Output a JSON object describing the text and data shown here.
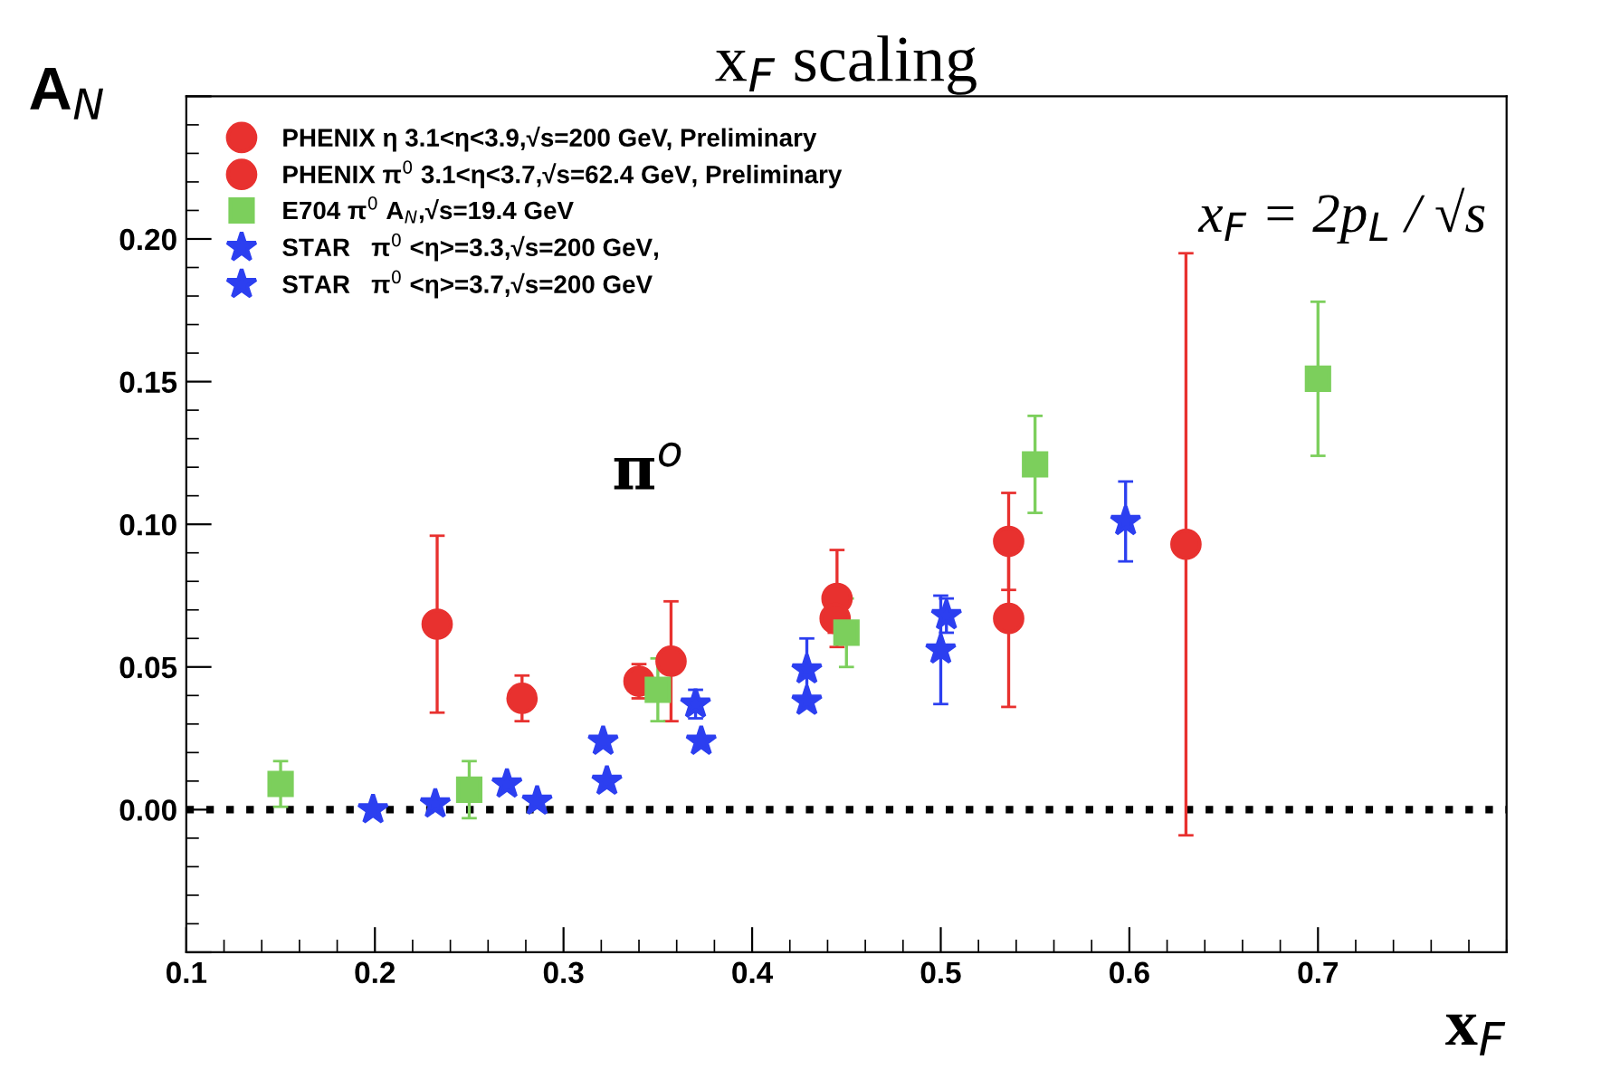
{
  "chart_data": {
    "type": "scatter",
    "title": "x$_{F}$ scaling",
    "xlabel": "x$_{F}$",
    "ylabel": "A$_{N}$",
    "xlim": [
      0.1,
      0.8
    ],
    "ylim": [
      -0.05,
      0.25
    ],
    "xticks": [
      0.1,
      0.2,
      0.3,
      0.4,
      0.5,
      0.6,
      0.7
    ],
    "yticks": [
      {
        "value": -0.05,
        "label": null
      },
      {
        "value": 0,
        "label": "0.00"
      },
      {
        "value": 0.05,
        "label": "0.05"
      },
      {
        "value": 0.1,
        "label": "0.10"
      },
      {
        "value": 0.15,
        "label": "0.15"
      },
      {
        "value": 0.2,
        "label": "0.20"
      },
      {
        "value": 0.25,
        "label": null
      }
    ],
    "grid": false,
    "legend": "top left",
    "ref_lines": [
      {
        "axis": "y",
        "value": 0,
        "color": "#000000",
        "line_style": "dotted"
      }
    ],
    "annotations": [
      "π$^{o}$",
      "x$_{F}$ = 2p$_{L}$ / √s"
    ],
    "series": [
      {
        "name": "PHENIX η 3.1<η<3.9,√s=200 GeV, Preliminary",
        "color": "#e8312f",
        "marker": "circle",
        "x": [
          0.233,
          0.357,
          0.445,
          0.536,
          0.63
        ],
        "values": [
          0.065,
          0.052,
          0.074,
          0.067,
          0.093
        ],
        "errors": [
          0.031,
          0.021,
          0.017,
          0.031,
          0.102
        ]
      },
      {
        "name": "PHENIX π$^{0}$ 3.1<η<3.7,√s=62.4 GeV, Preliminary",
        "color": "#e8312f",
        "marker": "circle",
        "x": [
          0.278,
          0.34,
          0.444,
          0.536
        ],
        "values": [
          0.039,
          0.045,
          0.067,
          0.094
        ],
        "errors": [
          0.008,
          0.006,
          0.005,
          0.017
        ]
      },
      {
        "name": "E704 π$^{0}$ A$_{N}$,√s=19.4 GeV",
        "color": "#7ccf5c",
        "marker": "square",
        "x": [
          0.15,
          0.25,
          0.35,
          0.45,
          0.55,
          0.7
        ],
        "values": [
          0.009,
          0.007,
          0.042,
          0.062,
          0.121,
          0.151
        ],
        "errors": [
          0.008,
          0.01,
          0.011,
          0.012,
          0.017,
          0.027
        ]
      },
      {
        "name": "STAR   π$^{0}$ <η>=3.3,√s=200 GeV,",
        "color": "#2c3ff0",
        "marker": "star",
        "x": [
          0.232,
          0.27,
          0.321,
          0.37,
          0.429,
          0.5
        ],
        "values": [
          0.002,
          0.009,
          0.024,
          0.037,
          0.049,
          0.056
        ],
        "errors": [
          null,
          null,
          null,
          0.005,
          0.011,
          0.019
        ]
      },
      {
        "name": "STAR   π$^{0}$ <η>=3.7,√s=200 GeV",
        "color": "#2c3ff0",
        "marker": "star",
        "x": [
          0.199,
          0.286,
          0.323,
          0.373,
          0.429,
          0.503,
          0.598
        ],
        "values": [
          0.0,
          0.003,
          0.01,
          0.024,
          0.038,
          0.068,
          0.101
        ],
        "errors": [
          null,
          null,
          null,
          null,
          null,
          0.006,
          0.014
        ]
      }
    ]
  }
}
